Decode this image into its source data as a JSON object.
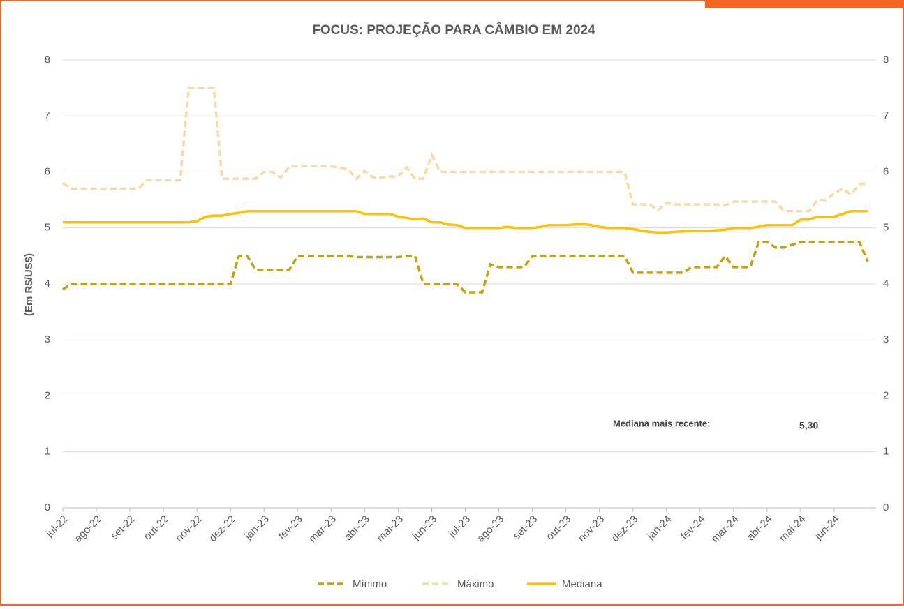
{
  "chart_data": {
    "type": "line",
    "title": "FOCUS: PROJEÇÃO PARA CÂMBIO EM 2024",
    "y_label": "(Em R$/US$)",
    "annotations": [
      "Mediana mais recente:",
      "5,30"
    ],
    "categories": [
      "jul-22",
      null,
      null,
      null,
      "ago-22",
      null,
      null,
      null,
      "set-22",
      null,
      null,
      null,
      "out-22",
      null,
      null,
      null,
      "nov-22",
      null,
      null,
      null,
      "dez-22",
      null,
      null,
      null,
      "jan-23",
      null,
      null,
      null,
      "fev-23",
      null,
      null,
      null,
      "mar-23",
      null,
      null,
      null,
      "abr-23",
      null,
      null,
      null,
      "mai-23",
      null,
      null,
      null,
      "jun-23",
      null,
      null,
      null,
      "jul-23",
      null,
      null,
      null,
      "ago-23",
      null,
      null,
      null,
      "set-23",
      null,
      null,
      null,
      "out-23",
      null,
      null,
      null,
      "nov-23",
      null,
      null,
      null,
      "dez-23",
      null,
      null,
      null,
      "jan-24",
      null,
      null,
      null,
      "fev-24",
      null,
      null,
      null,
      "mar-24",
      null,
      null,
      null,
      "abr-24",
      null,
      null,
      null,
      "mai-24",
      null,
      null,
      null,
      "jun-24",
      null,
      null,
      null,
      null
    ],
    "series": [
      {
        "name": "Mínimo",
        "color": "#c9a100",
        "dashed": true,
        "values": [
          3.9,
          4,
          4,
          4,
          4,
          4,
          4,
          4,
          4,
          4,
          4,
          4,
          4,
          4,
          4,
          4,
          4,
          4,
          4,
          4,
          4,
          4.5,
          4.5,
          4.25,
          4.25,
          4.25,
          4.25,
          4.25,
          4.5,
          4.5,
          4.5,
          4.5,
          4.5,
          4.5,
          4.5,
          4.48,
          4.48,
          4.48,
          4.48,
          4.48,
          4.48,
          4.5,
          4.5,
          4,
          4,
          4,
          4,
          4,
          3.85,
          3.85,
          3.85,
          4.35,
          4.3,
          4.3,
          4.3,
          4.3,
          4.5,
          4.5,
          4.5,
          4.5,
          4.5,
          4.5,
          4.5,
          4.5,
          4.5,
          4.5,
          4.5,
          4.5,
          4.2,
          4.2,
          4.2,
          4.2,
          4.2,
          4.2,
          4.2,
          4.3,
          4.3,
          4.3,
          4.3,
          4.5,
          4.3,
          4.3,
          4.3,
          4.75,
          4.75,
          4.65,
          4.65,
          4.7,
          4.75,
          4.75,
          4.75,
          4.75,
          4.75,
          4.75,
          4.75,
          4.75,
          4.4
        ]
      },
      {
        "name": "Máximo",
        "color": "#fcd9a0",
        "dashed": true,
        "values": [
          5.8,
          5.7,
          5.7,
          5.7,
          5.7,
          5.7,
          5.7,
          5.7,
          5.7,
          5.7,
          5.85,
          5.85,
          5.85,
          5.85,
          5.85,
          7.5,
          7.5,
          7.5,
          7.5,
          5.88,
          5.88,
          5.88,
          5.88,
          5.88,
          6,
          6,
          5.9,
          6.1,
          6.1,
          6.1,
          6.1,
          6.1,
          6.1,
          6.08,
          6.05,
          5.88,
          6.02,
          5.9,
          5.9,
          5.92,
          5.92,
          6.08,
          5.88,
          5.88,
          6.3,
          6,
          6,
          6,
          6,
          6,
          6,
          6,
          6,
          6,
          6,
          6,
          6,
          6,
          6,
          6,
          6,
          6,
          6,
          6,
          6,
          6,
          6,
          6,
          5.42,
          5.42,
          5.42,
          5.32,
          5.45,
          5.42,
          5.42,
          5.42,
          5.42,
          5.42,
          5.42,
          5.4,
          5.47,
          5.47,
          5.47,
          5.47,
          5.47,
          5.47,
          5.3,
          5.3,
          5.3,
          5.3,
          5.5,
          5.5,
          5.62,
          5.7,
          5.6,
          5.78,
          5.8
        ]
      },
      {
        "name": "Mediana",
        "color": "#ffc000",
        "dashed": false,
        "values": [
          5.1,
          5.1,
          5.1,
          5.1,
          5.1,
          5.1,
          5.1,
          5.1,
          5.1,
          5.1,
          5.1,
          5.1,
          5.1,
          5.1,
          5.1,
          5.1,
          5.12,
          5.2,
          5.22,
          5.22,
          5.25,
          5.27,
          5.3,
          5.3,
          5.3,
          5.3,
          5.3,
          5.3,
          5.3,
          5.3,
          5.3,
          5.3,
          5.3,
          5.3,
          5.3,
          5.3,
          5.25,
          5.25,
          5.25,
          5.25,
          5.2,
          5.18,
          5.15,
          5.17,
          5.1,
          5.1,
          5.06,
          5.05,
          5,
          5,
          5,
          5,
          5,
          5.02,
          5,
          5,
          5,
          5.02,
          5.05,
          5.05,
          5.05,
          5.06,
          5.07,
          5.05,
          5.02,
          5,
          5,
          5,
          4.98,
          4.95,
          4.93,
          4.92,
          4.92,
          4.93,
          4.94,
          4.95,
          4.95,
          4.95,
          4.96,
          4.97,
          5,
          5,
          5,
          5.02,
          5.05,
          5.05,
          5.05,
          5.05,
          5.15,
          5.15,
          5.2,
          5.2,
          5.2,
          5.25,
          5.3,
          5.3,
          5.3
        ]
      }
    ],
    "ylim": [
      0,
      8
    ],
    "yticks": [
      0,
      1,
      2,
      3,
      4,
      5,
      6,
      7,
      8
    ],
    "y2lim": [
      0,
      8
    ],
    "y2ticks": [
      0,
      1,
      2,
      3,
      4,
      5,
      6,
      7,
      8
    ],
    "grid": true,
    "legend": "bottom"
  }
}
